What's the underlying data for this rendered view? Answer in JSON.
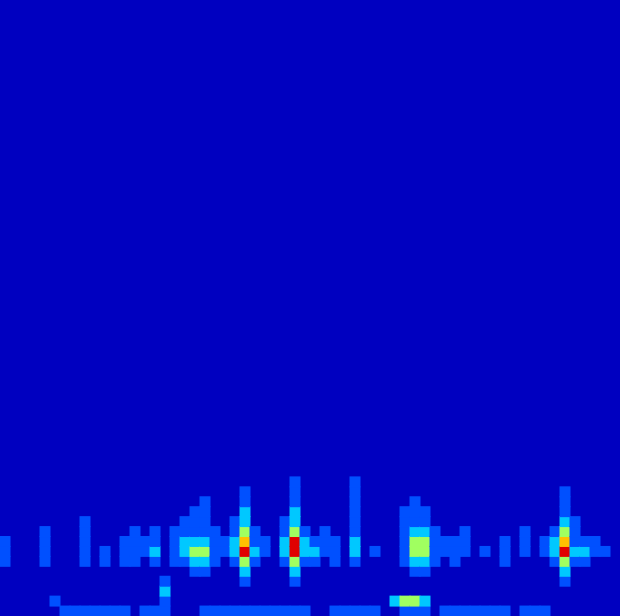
{
  "chart_data": {
    "type": "heatmap",
    "xlim": [
      0,
      62
    ],
    "ylim": [
      0,
      62
    ],
    "zlim": [
      0,
      5
    ],
    "tick_labels": false,
    "cells": [
      [
        0,
        5,
        1
      ],
      [
        0,
        6,
        1
      ],
      [
        0,
        7,
        1
      ],
      [
        4,
        5,
        1
      ],
      [
        4,
        6,
        1
      ],
      [
        4,
        7,
        1
      ],
      [
        4,
        8,
        1
      ],
      [
        5,
        1,
        1
      ],
      [
        6,
        0,
        1
      ],
      [
        7,
        0,
        1
      ],
      [
        8,
        0,
        1
      ],
      [
        9,
        0,
        1
      ],
      [
        10,
        0,
        1
      ],
      [
        11,
        0,
        1
      ],
      [
        12,
        0,
        1
      ],
      [
        8,
        5,
        1
      ],
      [
        8,
        6,
        1
      ],
      [
        8,
        7,
        1
      ],
      [
        8,
        8,
        1
      ],
      [
        8,
        9,
        1
      ],
      [
        10,
        5,
        1
      ],
      [
        10,
        6,
        1
      ],
      [
        12,
        5,
        1
      ],
      [
        12,
        6,
        1
      ],
      [
        12,
        7,
        1
      ],
      [
        13,
        5,
        1
      ],
      [
        13,
        6,
        1
      ],
      [
        13,
        7,
        1
      ],
      [
        13,
        8,
        1
      ],
      [
        14,
        0,
        1
      ],
      [
        14,
        6,
        1
      ],
      [
        14,
        7,
        1
      ],
      [
        15,
        0,
        1
      ],
      [
        15,
        5,
        1
      ],
      [
        15,
        6,
        2
      ],
      [
        15,
        7,
        1
      ],
      [
        15,
        8,
        1
      ],
      [
        16,
        0,
        1
      ],
      [
        16,
        1,
        1
      ],
      [
        16,
        2,
        2
      ],
      [
        16,
        3,
        1
      ],
      [
        17,
        5,
        1
      ],
      [
        17,
        6,
        1
      ],
      [
        17,
        7,
        1
      ],
      [
        17,
        8,
        1
      ],
      [
        18,
        5,
        1
      ],
      [
        18,
        6,
        2
      ],
      [
        18,
        7,
        2
      ],
      [
        18,
        8,
        1
      ],
      [
        18,
        9,
        1
      ],
      [
        19,
        4,
        1
      ],
      [
        19,
        5,
        2
      ],
      [
        19,
        6,
        3
      ],
      [
        19,
        7,
        2
      ],
      [
        19,
        8,
        1
      ],
      [
        19,
        9,
        1
      ],
      [
        19,
        10,
        1
      ],
      [
        20,
        0,
        1
      ],
      [
        20,
        4,
        1
      ],
      [
        20,
        5,
        2
      ],
      [
        20,
        6,
        3
      ],
      [
        20,
        7,
        2
      ],
      [
        20,
        8,
        1
      ],
      [
        20,
        9,
        1
      ],
      [
        20,
        10,
        1
      ],
      [
        20,
        11,
        1
      ],
      [
        21,
        0,
        1
      ],
      [
        21,
        5,
        1
      ],
      [
        21,
        6,
        1
      ],
      [
        21,
        7,
        1
      ],
      [
        21,
        8,
        1
      ],
      [
        22,
        0,
        1
      ],
      [
        22,
        6,
        1
      ],
      [
        22,
        7,
        1
      ],
      [
        23,
        0,
        1
      ],
      [
        23,
        5,
        1
      ],
      [
        23,
        6,
        2
      ],
      [
        23,
        7,
        2
      ],
      [
        23,
        8,
        1
      ],
      [
        23,
        9,
        1
      ],
      [
        24,
        0,
        1
      ],
      [
        24,
        3,
        1
      ],
      [
        24,
        4,
        2
      ],
      [
        24,
        5,
        3
      ],
      [
        24,
        6,
        5
      ],
      [
        24,
        7,
        4
      ],
      [
        24,
        8,
        3
      ],
      [
        24,
        9,
        2
      ],
      [
        24,
        10,
        2
      ],
      [
        24,
        11,
        1
      ],
      [
        24,
        12,
        1
      ],
      [
        25,
        0,
        1
      ],
      [
        25,
        5,
        1
      ],
      [
        25,
        6,
        2
      ],
      [
        25,
        7,
        1
      ],
      [
        25,
        8,
        1
      ],
      [
        26,
        0,
        1
      ],
      [
        26,
        6,
        1
      ],
      [
        26,
        7,
        1
      ],
      [
        27,
        0,
        1
      ],
      [
        28,
        0,
        1
      ],
      [
        28,
        5,
        1
      ],
      [
        28,
        6,
        2
      ],
      [
        28,
        7,
        2
      ],
      [
        28,
        8,
        1
      ],
      [
        28,
        9,
        1
      ],
      [
        29,
        0,
        1
      ],
      [
        29,
        3,
        1
      ],
      [
        29,
        4,
        2
      ],
      [
        29,
        5,
        3
      ],
      [
        29,
        6,
        5
      ],
      [
        29,
        7,
        5
      ],
      [
        29,
        8,
        3
      ],
      [
        29,
        9,
        2
      ],
      [
        29,
        10,
        2
      ],
      [
        29,
        11,
        1
      ],
      [
        29,
        12,
        1
      ],
      [
        29,
        13,
        1
      ],
      [
        30,
        0,
        1
      ],
      [
        30,
        5,
        1
      ],
      [
        30,
        6,
        2
      ],
      [
        30,
        7,
        2
      ],
      [
        30,
        8,
        1
      ],
      [
        31,
        5,
        1
      ],
      [
        31,
        6,
        2
      ],
      [
        31,
        7,
        1
      ],
      [
        32,
        6,
        1
      ],
      [
        32,
        7,
        1
      ],
      [
        32,
        8,
        1
      ],
      [
        33,
        0,
        1
      ],
      [
        33,
        5,
        1
      ],
      [
        33,
        6,
        1
      ],
      [
        33,
        7,
        1
      ],
      [
        34,
        0,
        1
      ],
      [
        35,
        0,
        1
      ],
      [
        35,
        5,
        1
      ],
      [
        35,
        6,
        2
      ],
      [
        35,
        7,
        2
      ],
      [
        35,
        8,
        1
      ],
      [
        35,
        9,
        1
      ],
      [
        35,
        10,
        1
      ],
      [
        35,
        11,
        1
      ],
      [
        35,
        12,
        1
      ],
      [
        35,
        13,
        1
      ],
      [
        36,
        0,
        1
      ],
      [
        37,
        0,
        1
      ],
      [
        37,
        6,
        1
      ],
      [
        39,
        1,
        2
      ],
      [
        40,
        0,
        1
      ],
      [
        40,
        1,
        3
      ],
      [
        40,
        5,
        1
      ],
      [
        40,
        6,
        1
      ],
      [
        40,
        7,
        1
      ],
      [
        40,
        8,
        1
      ],
      [
        40,
        9,
        1
      ],
      [
        40,
        10,
        1
      ],
      [
        41,
        0,
        1
      ],
      [
        41,
        1,
        3
      ],
      [
        41,
        4,
        1
      ],
      [
        41,
        5,
        2
      ],
      [
        41,
        6,
        3
      ],
      [
        41,
        7,
        3
      ],
      [
        41,
        8,
        2
      ],
      [
        41,
        9,
        1
      ],
      [
        41,
        10,
        1
      ],
      [
        41,
        11,
        1
      ],
      [
        42,
        0,
        1
      ],
      [
        42,
        1,
        2
      ],
      [
        42,
        4,
        1
      ],
      [
        42,
        5,
        2
      ],
      [
        42,
        6,
        3
      ],
      [
        42,
        7,
        3
      ],
      [
        42,
        8,
        2
      ],
      [
        42,
        9,
        1
      ],
      [
        42,
        10,
        1
      ],
      [
        43,
        5,
        1
      ],
      [
        43,
        6,
        1
      ],
      [
        43,
        7,
        1
      ],
      [
        43,
        8,
        1
      ],
      [
        44,
        0,
        1
      ],
      [
        44,
        6,
        1
      ],
      [
        44,
        7,
        1
      ],
      [
        45,
        0,
        1
      ],
      [
        45,
        5,
        1
      ],
      [
        45,
        6,
        1
      ],
      [
        45,
        7,
        1
      ],
      [
        46,
        0,
        1
      ],
      [
        46,
        6,
        1
      ],
      [
        46,
        7,
        1
      ],
      [
        46,
        8,
        1
      ],
      [
        47,
        0,
        1
      ],
      [
        48,
        0,
        1
      ],
      [
        48,
        6,
        1
      ],
      [
        49,
        0,
        1
      ],
      [
        50,
        0,
        1
      ],
      [
        50,
        5,
        1
      ],
      [
        50,
        6,
        1
      ],
      [
        50,
        7,
        1
      ],
      [
        52,
        0,
        1
      ],
      [
        52,
        6,
        1
      ],
      [
        52,
        7,
        1
      ],
      [
        52,
        8,
        1
      ],
      [
        53,
        0,
        1
      ],
      [
        54,
        0,
        1
      ],
      [
        54,
        6,
        1
      ],
      [
        54,
        7,
        1
      ],
      [
        55,
        5,
        1
      ],
      [
        55,
        6,
        2
      ],
      [
        55,
        7,
        2
      ],
      [
        55,
        8,
        1
      ],
      [
        56,
        3,
        1
      ],
      [
        56,
        4,
        2
      ],
      [
        56,
        5,
        3
      ],
      [
        56,
        6,
        5
      ],
      [
        56,
        7,
        4
      ],
      [
        56,
        8,
        3
      ],
      [
        56,
        9,
        2
      ],
      [
        56,
        10,
        1
      ],
      [
        56,
        11,
        1
      ],
      [
        56,
        12,
        1
      ],
      [
        57,
        5,
        1
      ],
      [
        57,
        6,
        2
      ],
      [
        57,
        7,
        1
      ],
      [
        57,
        8,
        1
      ],
      [
        57,
        9,
        1
      ],
      [
        58,
        5,
        1
      ],
      [
        58,
        6,
        2
      ],
      [
        58,
        7,
        1
      ],
      [
        59,
        6,
        1
      ],
      [
        59,
        7,
        1
      ],
      [
        60,
        6,
        1
      ]
    ]
  }
}
